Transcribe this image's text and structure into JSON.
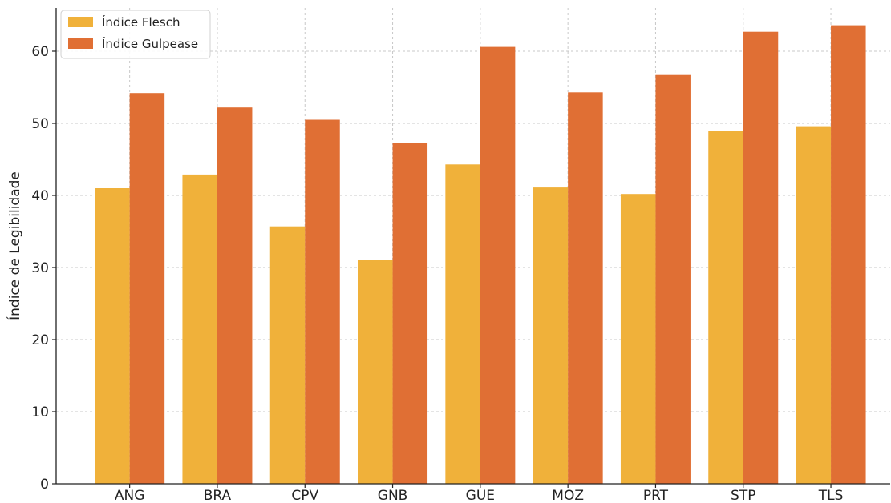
{
  "chart_data": {
    "type": "bar",
    "title": "",
    "xlabel": "",
    "ylabel": "Índice de Legibilidade",
    "categories": [
      "ANG",
      "BRA",
      "CPV",
      "GNB",
      "GUE",
      "MOZ",
      "PRT",
      "STP",
      "TLS"
    ],
    "series": [
      {
        "name": "Índice Flesch",
        "color": "#F0B13A",
        "values": [
          41.0,
          42.9,
          35.7,
          31.0,
          44.3,
          41.1,
          40.2,
          49.0,
          49.6
        ]
      },
      {
        "name": "Índice Gulpease",
        "color": "#E06F34",
        "values": [
          54.2,
          52.2,
          50.5,
          47.3,
          60.6,
          54.3,
          56.7,
          62.7,
          63.6
        ]
      }
    ],
    "ylim": [
      0,
      66
    ],
    "yticks": [
      0,
      10,
      20,
      30,
      40,
      50,
      60
    ],
    "grid": true,
    "legend_position": "top-left"
  }
}
